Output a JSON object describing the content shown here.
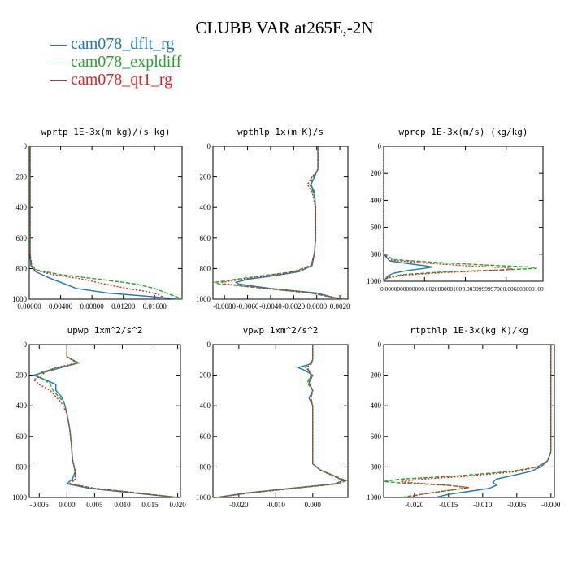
{
  "title": "CLUBB VAR at265E,-2N",
  "legend": [
    {
      "name": "cam078_dflt_rg",
      "color": "#1f77b4",
      "dash": ""
    },
    {
      "name": "cam078_expldiff",
      "color": "#2ca02c",
      "dash": "5,2"
    },
    {
      "name": "cam078_qt1_rg",
      "color": "#d62728",
      "dash": "2,2"
    }
  ],
  "chart_data": [
    {
      "type": "line",
      "title": "wprtp  1E-3x(m kg)/(s kg)",
      "xlim": [
        0,
        0.0195
      ],
      "ylim": [
        1000,
        0
      ],
      "xticks": [
        0,
        0.004,
        0.008,
        0.012,
        0.016
      ],
      "xtick_labels": [
        "0.00000",
        "0.00400",
        "0.00800",
        "0.01200",
        "0.01600"
      ],
      "yticks": [
        0,
        200,
        400,
        600,
        800,
        1000
      ],
      "ytick_labels": [
        "0",
        "200",
        "400",
        "600",
        "800",
        "1000"
      ],
      "series": [
        {
          "y": [
            0,
            100,
            200,
            300,
            400,
            500,
            600,
            700,
            780,
            820,
            860,
            900,
            930,
            960,
            985,
            1000
          ],
          "values": [
            0.0001,
            0.0001,
            0.0001,
            0.0001,
            0.0001,
            0.0001,
            0.0001,
            0.0001,
            0.0002,
            0.0008,
            0.0025,
            0.0045,
            0.006,
            0.01,
            0.016,
            0.019
          ]
        },
        {
          "y": [
            0,
            100,
            200,
            300,
            400,
            500,
            600,
            700,
            780,
            810,
            840,
            870,
            900,
            930,
            960,
            985,
            1000
          ],
          "values": [
            0.0001,
            0.0001,
            0.0001,
            0.0001,
            0.0001,
            0.0001,
            0.0001,
            0.0001,
            0.0003,
            0.001,
            0.004,
            0.009,
            0.0135,
            0.016,
            0.0175,
            0.0188,
            0.0195
          ]
        },
        {
          "y": [
            0,
            100,
            200,
            300,
            400,
            500,
            600,
            700,
            780,
            810,
            840,
            870,
            900,
            920,
            935,
            950,
            970,
            1000
          ],
          "values": [
            0.0001,
            0.0001,
            0.0001,
            0.0001,
            0.0001,
            0.0001,
            0.0001,
            0.0001,
            0.0003,
            0.0008,
            0.003,
            0.007,
            0.0095,
            0.0115,
            0.013,
            0.015,
            0.0165,
            0.0175
          ]
        }
      ]
    },
    {
      "type": "line",
      "title": "wpthlp  1x(m K)/s",
      "xlim": [
        -0.009,
        0.0027
      ],
      "ylim": [
        1000,
        0
      ],
      "xticks": [
        -0.008,
        -0.006,
        -0.004,
        -0.002,
        0,
        0.002
      ],
      "xtick_labels": [
        "-0.0080",
        "-0.0060",
        "-0.0040",
        "-0.0020",
        "0.0000",
        "0.0020"
      ],
      "yticks": [
        0,
        200,
        400,
        600,
        800,
        1000
      ],
      "ytick_labels": [
        "0",
        "200",
        "400",
        "600",
        "800",
        "1000"
      ],
      "series": [
        {
          "y": [
            0,
            100,
            150,
            200,
            250,
            300,
            400,
            500,
            600,
            700,
            780,
            820,
            850,
            870,
            890,
            900,
            910,
            930,
            960,
            990,
            1000
          ],
          "values": [
            0.0001,
            0.0001,
            0.0001,
            -0.0002,
            -0.0005,
            -0.0002,
            -0.0001,
            -0.0001,
            -0.0001,
            -0.0002,
            -0.0004,
            -0.0015,
            -0.004,
            -0.006,
            -0.007,
            -0.0068,
            -0.006,
            -0.004,
            0,
            0.0015,
            0.0025
          ]
        },
        {
          "y": [
            0,
            100,
            150,
            200,
            250,
            300,
            400,
            500,
            600,
            700,
            780,
            820,
            850,
            870,
            890,
            900,
            910,
            930,
            960,
            990,
            1000
          ],
          "values": [
            0.0001,
            0.0001,
            0.0001,
            -0.0003,
            -0.0006,
            -0.0003,
            -0.0001,
            -0.0001,
            -0.0001,
            -0.0002,
            -0.0005,
            -0.002,
            -0.005,
            -0.007,
            -0.0088,
            -0.0085,
            -0.007,
            -0.0045,
            -0.0005,
            0.0015,
            0.0025
          ]
        },
        {
          "y": [
            0,
            100,
            150,
            200,
            250,
            300,
            400,
            500,
            600,
            700,
            780,
            820,
            850,
            870,
            890,
            900,
            910,
            930,
            960,
            990,
            1000
          ],
          "values": [
            0.0001,
            0.0001,
            0.0001,
            -0.0004,
            -0.0008,
            -0.0004,
            -0.0001,
            -0.0001,
            -0.0001,
            -0.0002,
            -0.0005,
            -0.0018,
            -0.0045,
            -0.0065,
            -0.0082,
            -0.008,
            -0.0068,
            -0.0045,
            -0.0005,
            0.0015,
            0.0025
          ]
        }
      ]
    },
    {
      "type": "line",
      "title": "wprcp  1E-3x(m/s) (kg/kg)",
      "xlim": [
        0,
        0.0078
      ],
      "ylim": [
        1000,
        0
      ],
      "xticks": [
        0,
        0.002,
        0.004,
        0.006
      ],
      "xtick_labels": [
        "0.000000000000",
        "0.002000000100",
        "0.003999999700",
        "0.006000000100"
      ],
      "yticks": [
        0,
        200,
        400,
        600,
        800,
        1000
      ],
      "ytick_labels": [
        "0",
        "200",
        "400",
        "600",
        "800",
        "1000"
      ],
      "series": [
        {
          "y": [
            0,
            200,
            400,
            600,
            800,
            850,
            870,
            885,
            895,
            905,
            920,
            940,
            960,
            980,
            1000
          ],
          "values": [
            0,
            0,
            0,
            0,
            0,
            0.0003,
            0.0012,
            0.002,
            0.0024,
            0.002,
            0.0012,
            0.0005,
            0.0002,
            0.0001,
            0
          ]
        },
        {
          "y": [
            0,
            200,
            400,
            600,
            800,
            840,
            860,
            880,
            895,
            905,
            915,
            930,
            950,
            970,
            1000
          ],
          "values": [
            0,
            0,
            0,
            0,
            0,
            0.0005,
            0.0025,
            0.005,
            0.0072,
            0.0075,
            0.006,
            0.003,
            0.001,
            0.0002,
            0
          ]
        },
        {
          "y": [
            0,
            200,
            400,
            600,
            800,
            845,
            865,
            885,
            900,
            910,
            920,
            935,
            955,
            975,
            1000
          ],
          "values": [
            0,
            0,
            0,
            0,
            0,
            0.0004,
            0.002,
            0.004,
            0.006,
            0.0063,
            0.0055,
            0.003,
            0.001,
            0.0002,
            0
          ]
        }
      ]
    },
    {
      "type": "line",
      "title": "upwp  1xm^2/s^2",
      "xlim": [
        -0.0068,
        0.0205
      ],
      "ylim": [
        1000,
        0
      ],
      "xticks": [
        -0.005,
        0,
        0.005,
        0.01,
        0.015,
        0.02
      ],
      "xtick_labels": [
        "-0.005",
        "0.000",
        "0.005",
        "0.010",
        "0.015",
        "0.020"
      ],
      "yticks": [
        0,
        200,
        400,
        600,
        800,
        1000
      ],
      "ytick_labels": [
        "0",
        "200",
        "400",
        "600",
        "800",
        "1000"
      ],
      "series": [
        {
          "y": [
            0,
            80,
            120,
            150,
            180,
            200,
            230,
            260,
            300,
            340,
            380,
            450,
            550,
            650,
            750,
            830,
            880,
            910,
            940,
            970,
            1000
          ],
          "values": [
            0,
            0,
            0.002,
            -0.001,
            -0.004,
            -0.006,
            -0.004,
            -0.002,
            -0.002,
            -0.001,
            -0.0005,
            0,
            0.0005,
            0.0008,
            0.001,
            0.0015,
            0.001,
            0,
            0.004,
            0.012,
            0.02
          ]
        },
        {
          "y": [
            0,
            80,
            120,
            150,
            180,
            200,
            230,
            260,
            300,
            340,
            380,
            450,
            550,
            650,
            750,
            830,
            880,
            910,
            940,
            970,
            1000
          ],
          "values": [
            0,
            0,
            0.0022,
            -0.0015,
            -0.0045,
            -0.0055,
            -0.004,
            -0.003,
            -0.0025,
            -0.0015,
            -0.0005,
            0,
            0.0005,
            0.0008,
            0.001,
            0.0015,
            0.0015,
            0.0005,
            0.005,
            0.013,
            0.02
          ]
        },
        {
          "y": [
            0,
            80,
            120,
            150,
            180,
            200,
            230,
            260,
            300,
            340,
            380,
            450,
            550,
            650,
            750,
            830,
            880,
            910,
            940,
            970,
            1000
          ],
          "values": [
            0,
            0,
            0.0018,
            -0.002,
            -0.004,
            -0.0045,
            -0.006,
            -0.005,
            -0.003,
            -0.002,
            -0.001,
            0,
            0.0005,
            0.0008,
            0.001,
            0.0015,
            0.0015,
            0.0005,
            0.005,
            0.0125,
            0.02
          ]
        }
      ]
    },
    {
      "type": "line",
      "title": "vpwp  1xm^2/s^2",
      "xlim": [
        -0.027,
        0.0095
      ],
      "ylim": [
        1000,
        0
      ],
      "xticks": [
        -0.02,
        -0.01,
        0
      ],
      "xtick_labels": [
        "-0.020",
        "-0.010",
        "0.000"
      ],
      "yticks": [
        0,
        200,
        400,
        600,
        800,
        1000
      ],
      "ytick_labels": [
        "0",
        "200",
        "400",
        "600",
        "800",
        "1000"
      ],
      "series": [
        {
          "y": [
            0,
            100,
            130,
            150,
            170,
            200,
            250,
            300,
            350,
            400,
            500,
            600,
            700,
            780,
            820,
            860,
            890,
            910,
            940,
            970,
            1000
          ],
          "values": [
            0,
            0,
            -0.001,
            -0.004,
            -0.002,
            0,
            -0.001,
            0,
            -0.001,
            0,
            0,
            0,
            0,
            0,
            0.002,
            0.006,
            0.008,
            0.006,
            -0.006,
            -0.018,
            -0.026
          ]
        },
        {
          "y": [
            0,
            100,
            130,
            150,
            170,
            200,
            250,
            300,
            350,
            400,
            500,
            600,
            700,
            780,
            820,
            860,
            890,
            910,
            940,
            970,
            1000
          ],
          "values": [
            0,
            0,
            -0.0005,
            -0.002,
            -0.001,
            -0.0005,
            -0.0015,
            0,
            -0.0005,
            0,
            0,
            0,
            0,
            0,
            0.002,
            0.006,
            0.009,
            0.007,
            -0.005,
            -0.017,
            -0.026
          ]
        },
        {
          "y": [
            0,
            100,
            130,
            150,
            170,
            200,
            250,
            300,
            350,
            400,
            500,
            600,
            700,
            780,
            820,
            860,
            890,
            910,
            940,
            970,
            1000
          ],
          "values": [
            0,
            0,
            -0.0005,
            -0.0015,
            -0.001,
            -0.0005,
            -0.001,
            0,
            -0.0005,
            0,
            0,
            0,
            0,
            0,
            0.002,
            0.0055,
            0.0085,
            0.0065,
            -0.005,
            -0.017,
            -0.026
          ]
        }
      ]
    },
    {
      "type": "line",
      "title": "rtpthlp  1E-3x(kg K)/kg",
      "xlim": [
        -0.0245,
        0.0005
      ],
      "ylim": [
        1000,
        0
      ],
      "xticks": [
        -0.02,
        -0.015,
        -0.01,
        -0.005,
        0
      ],
      "xtick_labels": [
        "-0.020",
        "-0.015",
        "-0.010",
        "-0.005",
        "-0.000"
      ],
      "yticks": [
        0,
        200,
        400,
        600,
        800,
        1000
      ],
      "ytick_labels": [
        "0",
        "200",
        "400",
        "600",
        "800",
        "1000"
      ],
      "series": [
        {
          "y": [
            0,
            200,
            400,
            600,
            700,
            760,
            800,
            830,
            860,
            880,
            900,
            920,
            940,
            960,
            980,
            1000
          ],
          "values": [
            0,
            0,
            0,
            0,
            0,
            -0.0005,
            -0.0015,
            -0.003,
            -0.006,
            -0.008,
            -0.0085,
            -0.008,
            -0.009,
            -0.012,
            -0.015,
            -0.017
          ]
        },
        {
          "y": [
            0,
            200,
            400,
            600,
            700,
            760,
            800,
            830,
            860,
            880,
            895,
            905,
            920,
            935,
            960,
            980,
            1000
          ],
          "values": [
            0,
            0,
            0,
            0,
            0,
            -0.0005,
            -0.002,
            -0.006,
            -0.014,
            -0.022,
            -0.0245,
            -0.022,
            -0.015,
            -0.012,
            -0.016,
            -0.019,
            -0.022
          ]
        },
        {
          "y": [
            0,
            200,
            400,
            600,
            700,
            760,
            800,
            830,
            860,
            880,
            895,
            905,
            920,
            935,
            960,
            980,
            1000
          ],
          "values": [
            0,
            0,
            0,
            0,
            0,
            -0.0005,
            -0.002,
            -0.005,
            -0.012,
            -0.019,
            -0.022,
            -0.02,
            -0.015,
            -0.012,
            -0.016,
            -0.019,
            -0.021
          ]
        }
      ]
    }
  ]
}
